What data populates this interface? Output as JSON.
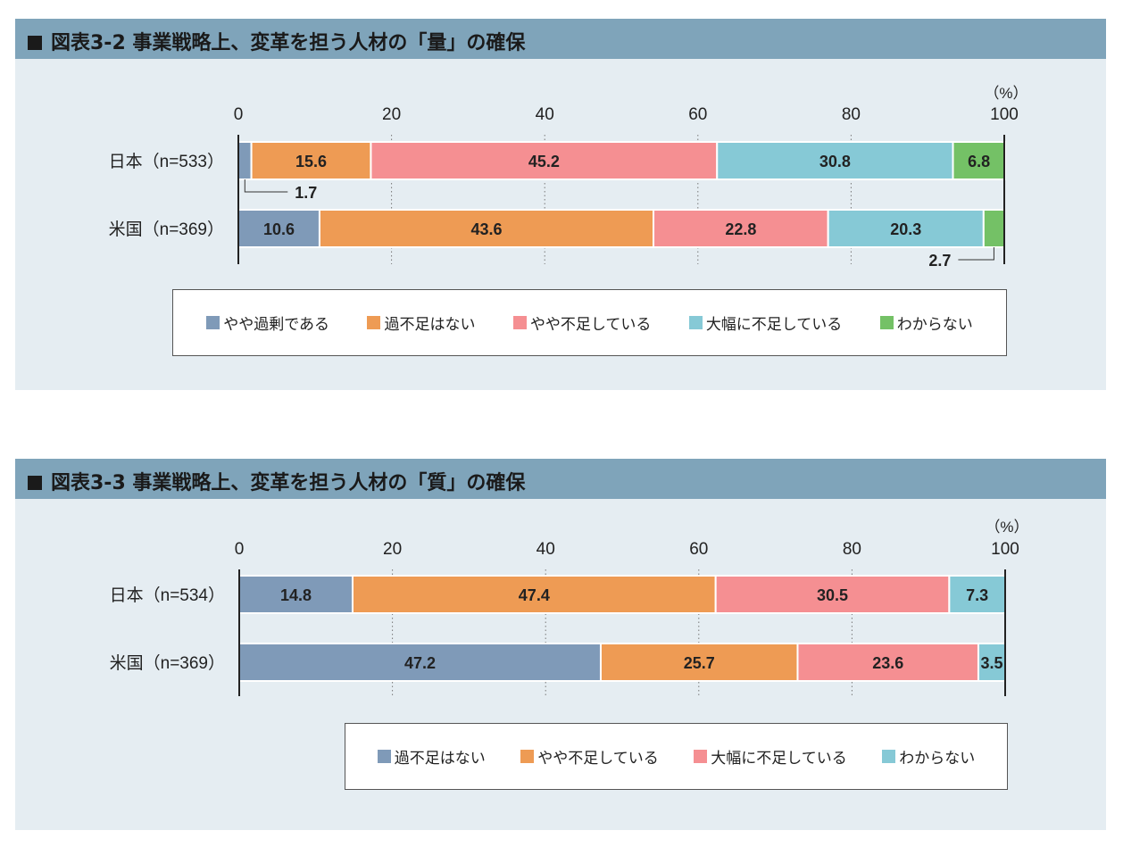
{
  "chart_data": [
    {
      "type": "bar",
      "orientation": "horizontal-stacked",
      "title": "図表3-2 事業戦略上、変革を担う人材の「量」の確保",
      "unit": "（%）",
      "xlim": [
        0,
        100
      ],
      "ticks": [
        "0",
        "20",
        "40",
        "60",
        "80",
        "100"
      ],
      "categories": [
        "日本（n=533）",
        "米国（n=369）"
      ],
      "series": [
        {
          "name": "やや過剰である",
          "color": "#7f9ab8",
          "values": [
            1.7,
            10.6
          ]
        },
        {
          "name": "過不足はない",
          "color": "#ee9b54",
          "values": [
            15.6,
            43.6
          ]
        },
        {
          "name": "やや不足している",
          "color": "#f58f92",
          "values": [
            45.2,
            22.8
          ]
        },
        {
          "name": "大幅に不足している",
          "color": "#86c9d6",
          "values": [
            30.8,
            20.3
          ]
        },
        {
          "name": "わからない",
          "color": "#74c166",
          "values": [
            6.8,
            2.7
          ]
        }
      ],
      "labels": [
        [
          "1.7",
          "15.6",
          "45.2",
          "30.8",
          "6.8"
        ],
        [
          "10.6",
          "43.6",
          "22.8",
          "20.3",
          "2.7"
        ]
      ],
      "callouts": [
        {
          "row": 0,
          "series": 0,
          "text": "1.7"
        },
        {
          "row": 1,
          "series": 4,
          "text": "2.7"
        }
      ],
      "legend": "bottom"
    },
    {
      "type": "bar",
      "orientation": "horizontal-stacked",
      "title": "図表3-3 事業戦略上、変革を担う人材の「質」の確保",
      "unit": "（%）",
      "xlim": [
        0,
        100
      ],
      "ticks": [
        "0",
        "20",
        "40",
        "60",
        "80",
        "100"
      ],
      "categories": [
        "日本（n=534）",
        "米国（n=369）"
      ],
      "series": [
        {
          "name": "過不足はない",
          "color": "#7f9ab8",
          "values": [
            14.8,
            47.2
          ]
        },
        {
          "name": "やや不足している",
          "color": "#ee9b54",
          "values": [
            47.4,
            25.7
          ]
        },
        {
          "name": "大幅に不足している",
          "color": "#f58f92",
          "values": [
            30.5,
            23.6
          ]
        },
        {
          "name": "わからない",
          "color": "#86c9d6",
          "values": [
            7.3,
            3.5
          ]
        }
      ],
      "labels": [
        [
          "14.8",
          "47.4",
          "30.5",
          "7.3"
        ],
        [
          "47.2",
          "25.7",
          "23.6",
          "3.5"
        ]
      ],
      "callouts": [],
      "legend": "bottom"
    }
  ]
}
